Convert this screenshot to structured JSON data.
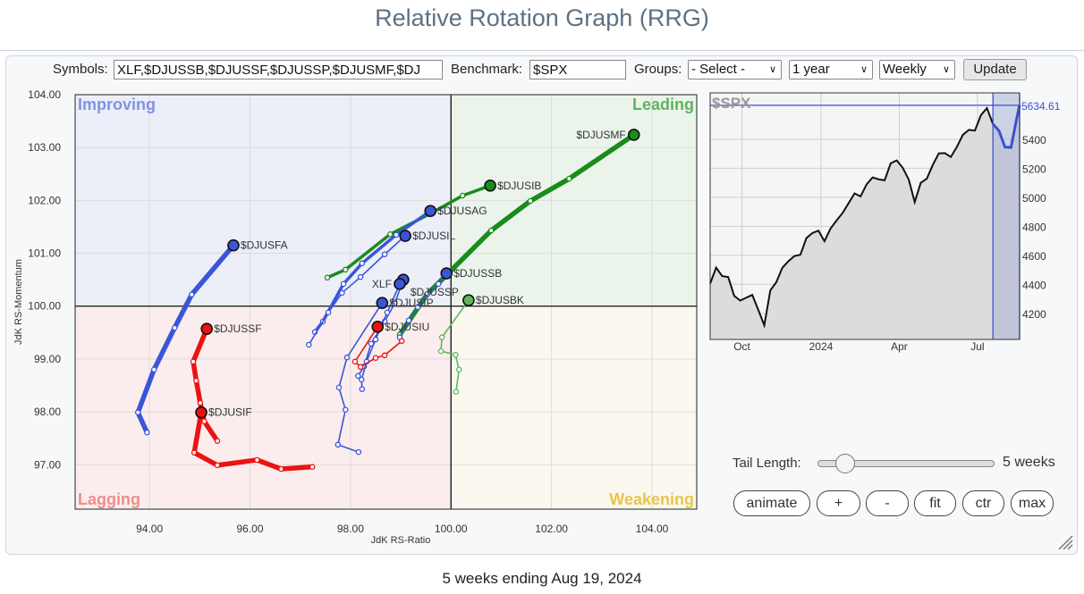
{
  "page": {
    "title": "Relative Rotation Graph (RRG)",
    "footer": "5 weeks ending Aug 19, 2024"
  },
  "controls": {
    "symbols_label": "Symbols:",
    "symbols_value": "XLF,$DJUSSB,$DJUSSF,$DJUSSP,$DJUSMF,$DJ",
    "benchmark_label": "Benchmark:",
    "benchmark_value": "$SPX",
    "groups_label": "Groups:",
    "groups_value": "- Select -",
    "period_value": "1 year",
    "frequency_value": "Weekly",
    "update_label": "Update",
    "tail_length_label": "Tail Length:",
    "tail_length_value": "5 weeks",
    "tail_length_weeks": 5,
    "buttons": [
      "animate",
      "+",
      "-",
      "fit",
      "ctr",
      "max"
    ]
  },
  "chart_data": [
    {
      "type": "scatter",
      "subtype": "relative-rotation-graph",
      "xlabel": "JdK RS-Ratio",
      "ylabel": "JdK RS-Momentum",
      "xlim": [
        92.52,
        104.89
      ],
      "ylim": [
        96.16,
        104.0
      ],
      "x_ticks": [
        "94.00",
        "96.00",
        "98.00",
        "100.00",
        "102.00",
        "104.00"
      ],
      "y_ticks": [
        "104.00",
        "103.00",
        "102.00",
        "101.00",
        "100.00",
        "99.00",
        "98.00",
        "97.00"
      ],
      "grid": true,
      "center": [
        100,
        100
      ],
      "quadrants": [
        {
          "label": "Improving",
          "color": "#7f93e3",
          "fill": "#eceef8"
        },
        {
          "label": "Leading",
          "color": "#5db55d",
          "fill": "#ebf4ea"
        },
        {
          "label": "Lagging",
          "color": "#f08c8c",
          "fill": "#fbeded"
        },
        {
          "label": "Weakening",
          "color": "#e9c548",
          "fill": "#fbf8ef"
        }
      ],
      "series": [
        {
          "name": "$DJUSMF",
          "color": "#1a8c1a",
          "tail": "thick",
          "points": [
            [
              98.98,
              99.46
            ],
            [
              99.52,
              100.22
            ],
            [
              100.8,
              101.43
            ],
            [
              101.58,
              101.99
            ],
            [
              102.35,
              102.41
            ],
            [
              103.64,
              103.24
            ]
          ]
        },
        {
          "name": "$DJUSIB",
          "color": "#1a8c1a",
          "tail": "medium",
          "points": [
            [
              97.54,
              100.54
            ],
            [
              97.9,
              100.69
            ],
            [
              98.79,
              101.36
            ],
            [
              99.57,
              101.74
            ],
            [
              100.23,
              102.09
            ],
            [
              100.78,
              102.28
            ]
          ]
        },
        {
          "name": "$DJUSAG",
          "color": "#3a55d8",
          "tail": "medium",
          "points": [
            [
              97.29,
              99.51
            ],
            [
              97.45,
              99.71
            ],
            [
              97.86,
              100.42
            ],
            [
              98.23,
              100.81
            ],
            [
              98.91,
              101.35
            ],
            [
              99.59,
              101.8
            ]
          ]
        },
        {
          "name": "$DJUSIL",
          "color": "#3a55d8",
          "tail": "thin",
          "points": [
            [
              97.17,
              99.27
            ],
            [
              97.56,
              99.88
            ],
            [
              97.83,
              100.25
            ],
            [
              98.2,
              100.55
            ],
            [
              98.68,
              100.98
            ],
            [
              99.09,
              101.33
            ]
          ]
        },
        {
          "name": "$DJUSSB",
          "color": "#3a55d8",
          "tail": "thin",
          "points": [
            [
              98.98,
              99.41
            ],
            [
              99.16,
              99.73
            ],
            [
              99.34,
              99.98
            ],
            [
              99.53,
              100.23
            ],
            [
              99.75,
              100.42
            ],
            [
              99.91,
              100.62
            ]
          ]
        },
        {
          "name": "$DJUSSP",
          "color": "#3a55d8",
          "tail": "thin",
          "points": [
            [
              98.15,
              98.68
            ],
            [
              98.27,
              98.86
            ],
            [
              98.41,
              99.29
            ],
            [
              98.68,
              99.71
            ],
            [
              98.88,
              100.05
            ],
            [
              99.05,
              100.5
            ]
          ]
        },
        {
          "name": "XLF",
          "color": "#3a55d8",
          "tail": "thin",
          "points": [
            [
              98.23,
              98.43
            ],
            [
              98.22,
              98.61
            ],
            [
              98.32,
              98.95
            ],
            [
              98.5,
              99.37
            ],
            [
              98.73,
              99.88
            ],
            [
              98.98,
              100.42
            ]
          ]
        },
        {
          "name": "$DJUSIP",
          "color": "#3a55d8",
          "tail": "thin",
          "points": [
            [
              98.16,
              97.24
            ],
            [
              97.75,
              97.38
            ],
            [
              97.9,
              98.04
            ],
            [
              97.77,
              98.46
            ],
            [
              97.93,
              99.03
            ],
            [
              98.63,
              100.06
            ]
          ]
        },
        {
          "name": "$DJUSIU",
          "color": "#ee1111",
          "tail": "thin",
          "points": [
            [
              99.02,
              99.34
            ],
            [
              98.68,
              99.07
            ],
            [
              98.5,
              99.02
            ],
            [
              98.2,
              98.85
            ],
            [
              98.09,
              98.95
            ],
            [
              98.54,
              99.61
            ]
          ]
        },
        {
          "name": "$DJUSBK",
          "color": "#5cb85c",
          "tail": "thin",
          "points": [
            [
              100.1,
              98.38
            ],
            [
              100.16,
              98.8
            ],
            [
              100.09,
              99.08
            ],
            [
              99.8,
              99.15
            ],
            [
              99.82,
              99.41
            ],
            [
              100.35,
              100.11
            ]
          ]
        },
        {
          "name": "$DJUSFA",
          "color": "#3a55d8",
          "tail": "thick",
          "points": [
            [
              93.95,
              97.61
            ],
            [
              93.77,
              97.99
            ],
            [
              94.09,
              98.8
            ],
            [
              94.5,
              99.59
            ],
            [
              94.84,
              100.22
            ],
            [
              95.67,
              101.15
            ]
          ]
        },
        {
          "name": "$DJUSSF",
          "color": "#ee1111",
          "tail": "thick",
          "points": [
            [
              95.35,
              97.45
            ],
            [
              95.09,
              97.82
            ],
            [
              95.01,
              98.17
            ],
            [
              94.93,
              98.59
            ],
            [
              94.87,
              98.95
            ],
            [
              95.14,
              99.57
            ]
          ]
        },
        {
          "name": "$DJUSIF",
          "color": "#ee1111",
          "tail": "thick",
          "points": [
            [
              97.24,
              96.96
            ],
            [
              96.62,
              96.92
            ],
            [
              96.14,
              97.09
            ],
            [
              95.35,
              96.99
            ],
            [
              94.89,
              97.23
            ],
            [
              95.03,
              97.99
            ]
          ]
        }
      ]
    },
    {
      "type": "area",
      "title": "$SPX",
      "last_value": "5634.61",
      "line_color": "#111111",
      "highlight_color": "#3a4fd8",
      "highlight_weeks": 5,
      "ylim": [
        4020,
        5720
      ],
      "y_ticks": [
        "5400",
        "5200",
        "5000",
        "4800",
        "4600",
        "4400",
        "4200"
      ],
      "x_ticks": [
        {
          "label": "Oct",
          "date": "2023-10-01"
        },
        {
          "label": "2024",
          "date": "2024-01-01"
        },
        {
          "label": "Apr",
          "date": "2024-04-01"
        },
        {
          "label": "Jul",
          "date": "2024-07-01"
        }
      ],
      "grid": true,
      "x": [
        "2023-08-25",
        "2023-09-01",
        "2023-09-08",
        "2023-09-15",
        "2023-09-22",
        "2023-09-29",
        "2023-10-06",
        "2023-10-13",
        "2023-10-20",
        "2023-10-27",
        "2023-11-03",
        "2023-11-10",
        "2023-11-17",
        "2023-11-24",
        "2023-12-01",
        "2023-12-08",
        "2023-12-15",
        "2023-12-22",
        "2023-12-29",
        "2024-01-05",
        "2024-01-12",
        "2024-01-19",
        "2024-01-26",
        "2024-02-02",
        "2024-02-09",
        "2024-02-16",
        "2024-02-23",
        "2024-03-01",
        "2024-03-08",
        "2024-03-15",
        "2024-03-22",
        "2024-03-29",
        "2024-04-05",
        "2024-04-12",
        "2024-04-19",
        "2024-04-26",
        "2024-05-03",
        "2024-05-10",
        "2024-05-17",
        "2024-05-24",
        "2024-05-31",
        "2024-06-07",
        "2024-06-14",
        "2024-06-21",
        "2024-06-28",
        "2024-07-05",
        "2024-07-12",
        "2024-07-19",
        "2024-07-26",
        "2024-08-02",
        "2024-08-09",
        "2024-08-16",
        "2024-08-19"
      ],
      "values": [
        4405,
        4515,
        4457,
        4450,
        4320,
        4288,
        4308,
        4327,
        4224,
        4117,
        4358,
        4415,
        4514,
        4559,
        4595,
        4604,
        4719,
        4754,
        4770,
        4697,
        4784,
        4840,
        4891,
        4959,
        5027,
        5006,
        5089,
        5137,
        5124,
        5117,
        5234,
        5254,
        5204,
        5123,
        4967,
        5100,
        5128,
        5223,
        5303,
        5305,
        5278,
        5347,
        5431,
        5465,
        5460,
        5567,
        5615,
        5505,
        5459,
        5346,
        5344,
        5554,
        5634.61
      ]
    }
  ]
}
